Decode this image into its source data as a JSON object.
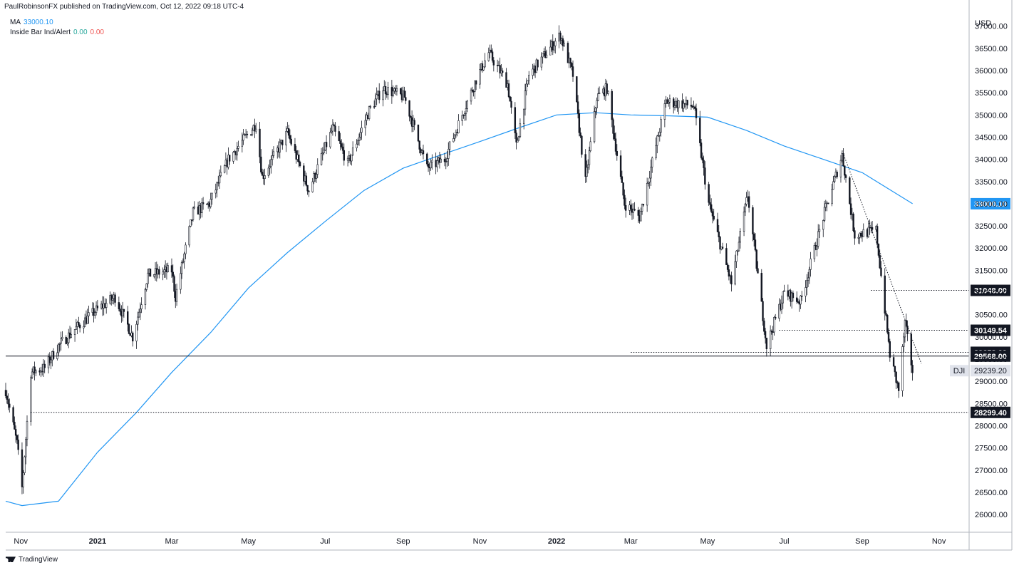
{
  "header": {
    "published": "PaulRobinsonFX published on TradingView.com, Oct 12, 2022 09:18 UTC-4"
  },
  "legend": {
    "ma_label": "MA",
    "ma_value": "33000.10",
    "indicator_label": "Inside Bar Ind/Alert",
    "indicator_value1": "0.00",
    "indicator_value2": "0.00"
  },
  "footer": {
    "brand": "TradingView"
  },
  "colors": {
    "ma_line": "#2196f3",
    "candle": "#131722",
    "up_signal": "#26a69a",
    "down_signal": "#ef5350",
    "axis_text": "#131722"
  },
  "chart_data": {
    "type": "line",
    "symbol": "DJI",
    "currency_label": "USD",
    "x_tick_labels": [
      "Nov",
      "2021",
      "Mar",
      "May",
      "Jul",
      "Sep",
      "Nov",
      "2022",
      "Mar",
      "May",
      "Jul",
      "Sep",
      "Nov"
    ],
    "y_tick_labels": [
      "26000.00",
      "26500.00",
      "27000.00",
      "27500.00",
      "28000.00",
      "28500.00",
      "29000.00",
      "29500.00",
      "30000.00",
      "30500.00",
      "31000.00",
      "31500.00",
      "32000.00",
      "32500.00",
      "33000.00",
      "33500.00",
      "34000.00",
      "34500.00",
      "35000.00",
      "35500.00",
      "36000.00",
      "36500.00",
      "37000.00"
    ],
    "ylim": [
      25600,
      37300
    ],
    "xlim": [
      "2020-10-20",
      "2022-11-25"
    ],
    "price_path": [
      [
        "2020-10-20",
        28800
      ],
      [
        "2020-10-29",
        27600
      ],
      [
        "2020-11-02",
        26600
      ],
      [
        "2020-11-09",
        29200
      ],
      [
        "2020-11-20",
        29300
      ],
      [
        "2020-12-01",
        29800
      ],
      [
        "2020-12-15",
        30200
      ],
      [
        "2020-12-31",
        30600
      ],
      [
        "2021-01-15",
        30900
      ],
      [
        "2021-01-29",
        30000
      ],
      [
        "2021-02-10",
        31400
      ],
      [
        "2021-03-01",
        31500
      ],
      [
        "2021-03-04",
        30900
      ],
      [
        "2021-03-18",
        32800
      ],
      [
        "2021-03-31",
        33000
      ],
      [
        "2021-04-15",
        34000
      ],
      [
        "2021-05-07",
        34800
      ],
      [
        "2021-05-12",
        33600
      ],
      [
        "2021-06-01",
        34600
      ],
      [
        "2021-06-18",
        33300
      ],
      [
        "2021-07-07",
        34700
      ],
      [
        "2021-07-19",
        33900
      ],
      [
        "2021-08-05",
        35100
      ],
      [
        "2021-08-16",
        35600
      ],
      [
        "2021-09-02",
        35400
      ],
      [
        "2021-09-20",
        33800
      ],
      [
        "2021-10-04",
        34000
      ],
      [
        "2021-10-29",
        35800
      ],
      [
        "2021-11-08",
        36400
      ],
      [
        "2021-11-23",
        35700
      ],
      [
        "2021-11-30",
        34300
      ],
      [
        "2021-12-10",
        35900
      ],
      [
        "2022-01-04",
        36800
      ],
      [
        "2022-01-14",
        35900
      ],
      [
        "2022-01-24",
        33500
      ],
      [
        "2022-02-02",
        35400
      ],
      [
        "2022-02-10",
        35600
      ],
      [
        "2022-02-24",
        33000
      ],
      [
        "2022-03-08",
        32700
      ],
      [
        "2022-03-29",
        35300
      ],
      [
        "2022-04-20",
        35200
      ],
      [
        "2022-05-02",
        33000
      ],
      [
        "2022-05-20",
        31200
      ],
      [
        "2022-06-02",
        33200
      ],
      [
        "2022-06-17",
        29800
      ],
      [
        "2022-07-01",
        31000
      ],
      [
        "2022-07-14",
        30800
      ],
      [
        "2022-08-01",
        32700
      ],
      [
        "2022-08-16",
        34100
      ],
      [
        "2022-08-26",
        32300
      ],
      [
        "2022-09-12",
        32400
      ],
      [
        "2022-09-23",
        29600
      ],
      [
        "2022-09-30",
        28800
      ],
      [
        "2022-10-05",
        30300
      ],
      [
        "2022-10-11",
        29239
      ]
    ],
    "ma_path": [
      [
        "2020-10-20",
        26300
      ],
      [
        "2020-11-02",
        26200
      ],
      [
        "2020-12-01",
        26300
      ],
      [
        "2021-01-01",
        27400
      ],
      [
        "2021-02-01",
        28300
      ],
      [
        "2021-03-01",
        29200
      ],
      [
        "2021-04-01",
        30100
      ],
      [
        "2021-05-01",
        31100
      ],
      [
        "2021-06-01",
        31900
      ],
      [
        "2021-07-01",
        32600
      ],
      [
        "2021-08-01",
        33300
      ],
      [
        "2021-09-01",
        33800
      ],
      [
        "2021-10-01",
        34100
      ],
      [
        "2021-11-01",
        34400
      ],
      [
        "2021-12-01",
        34700
      ],
      [
        "2022-01-01",
        35000
      ],
      [
        "2022-02-01",
        35050
      ],
      [
        "2022-03-01",
        35000
      ],
      [
        "2022-04-01",
        34980
      ],
      [
        "2022-05-01",
        34950
      ],
      [
        "2022-06-01",
        34650
      ],
      [
        "2022-07-01",
        34300
      ],
      [
        "2022-08-01",
        34000
      ],
      [
        "2022-09-01",
        33700
      ],
      [
        "2022-10-11",
        33000
      ]
    ],
    "levels": [
      {
        "label": "31048.00",
        "value": 31048,
        "style": "dotted",
        "from": "2022-09-08",
        "box": "black"
      },
      {
        "label": "30149.54",
        "value": 30149.54,
        "style": "dotted",
        "from": "2022-06-27",
        "box": "black"
      },
      {
        "label": "29653.00",
        "value": 29653,
        "style": "dotted",
        "from": "2022-03-01",
        "box": "black"
      },
      {
        "label": "29568.00",
        "value": 29568,
        "style": "solid",
        "from": "2020-10-20",
        "box": "black"
      },
      {
        "label": "28299.40",
        "value": 28299.4,
        "style": "dotted",
        "from": "2020-11-09",
        "box": "black"
      }
    ],
    "ma_last": {
      "label": "33000.10",
      "value": 33000.1
    },
    "last_price": {
      "label": "29239.20",
      "value": 29239.2
    },
    "trendline": {
      "from": [
        "2022-08-16",
        34200
      ],
      "to": [
        "2022-10-18",
        29400
      ]
    }
  }
}
